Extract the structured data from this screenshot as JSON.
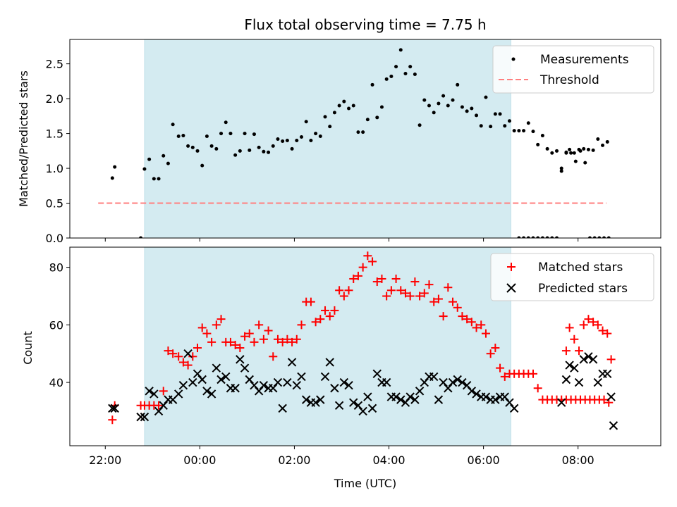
{
  "chart_data": {
    "type": "scatter",
    "title": "Flux total observing time = 7.75 h",
    "xlabel": "Time (UTC)",
    "x_unit": "hours (UTC), values past 24 = next day",
    "xlim": [
      21.25,
      33.75
    ],
    "x_tick_values": [
      22,
      24,
      26,
      28,
      30,
      32
    ],
    "x_tick_labels": [
      "22:00",
      "00:00",
      "02:00",
      "04:00",
      "06:00",
      "08:00"
    ],
    "observing_window": {
      "start": 22.83,
      "end": 30.58,
      "color": "#d4ebf1"
    },
    "panels": [
      {
        "name": "ratio",
        "ylabel": "Matched/Predicted stars",
        "ylim": [
          0,
          2.85
        ],
        "y_ticks": [
          0.0,
          0.5,
          1.0,
          1.5,
          2.0,
          2.5
        ],
        "y_tick_labels": [
          "0.0",
          "0.5",
          "1.0",
          "1.5",
          "2.0",
          "2.5"
        ],
        "legend": {
          "position": "upper right",
          "entries": [
            "Measurements",
            "Threshold"
          ]
        },
        "series": [
          {
            "name": "Measurements",
            "marker": "dot",
            "color": "#000000",
            "x": [
              22.15,
              22.2,
              22.75,
              22.83,
              22.93,
              23.03,
              23.13,
              23.23,
              23.33,
              23.43,
              23.55,
              23.65,
              23.75,
              23.85,
              23.95,
              24.05,
              24.15,
              24.25,
              24.35,
              24.45,
              24.55,
              24.65,
              24.75,
              24.85,
              24.95,
              25.05,
              25.15,
              25.25,
              25.35,
              25.45,
              25.55,
              25.65,
              25.75,
              25.85,
              25.95,
              26.05,
              26.15,
              26.25,
              26.35,
              26.45,
              26.55,
              26.65,
              26.75,
              26.85,
              26.95,
              27.05,
              27.15,
              27.25,
              27.35,
              27.45,
              27.55,
              27.65,
              27.75,
              27.85,
              27.95,
              28.05,
              28.15,
              28.25,
              28.35,
              28.45,
              28.55,
              28.65,
              28.75,
              28.85,
              28.95,
              29.05,
              29.15,
              29.25,
              29.35,
              29.45,
              29.55,
              29.65,
              29.75,
              29.85,
              29.95,
              30.05,
              30.15,
              30.25,
              30.35,
              30.45,
              30.55,
              30.65,
              30.75,
              30.85,
              30.95,
              31.05,
              31.15,
              31.25,
              31.35,
              31.45,
              31.55,
              31.65,
              31.75,
              31.85,
              31.95,
              32.05,
              32.15,
              32.25,
              32.35,
              32.45,
              32.55,
              32.65
            ],
            "y": [
              0.86,
              1.02,
              0.0,
              0.99,
              1.13,
              0.85,
              0.85,
              1.18,
              1.07,
              1.63,
              1.46,
              1.47,
              1.32,
              1.3,
              1.25,
              1.04,
              1.46,
              1.32,
              1.28,
              1.5,
              1.66,
              1.5,
              1.19,
              1.25,
              1.5,
              1.26,
              1.49,
              1.3,
              1.24,
              1.23,
              1.32,
              1.42,
              1.39,
              1.4,
              1.28,
              1.4,
              1.45,
              1.67,
              1.4,
              1.5,
              1.46,
              1.74,
              1.6,
              1.8,
              1.9,
              1.96,
              1.86,
              1.9,
              1.52,
              1.52,
              1.7,
              2.2,
              1.73,
              1.88,
              2.28,
              2.32,
              2.46,
              2.7,
              2.36,
              2.46,
              2.35,
              1.62,
              1.98,
              1.9,
              1.8,
              1.93,
              2.04,
              1.9,
              1.98,
              2.2,
              1.88,
              1.82,
              1.86,
              1.76,
              1.61,
              2.02,
              1.6,
              1.78,
              1.78,
              1.61,
              1.68,
              1.54,
              1.54,
              1.54,
              1.65,
              1.53,
              1.34,
              1.47,
              1.28,
              1.22,
              1.25,
              1.0,
              1.22,
              1.22,
              1.1,
              1.25,
              1.08,
              0.0,
              0.0,
              0.0,
              0.0,
              0.0
            ]
          },
          {
            "name": "Threshold",
            "marker": "dashed-line",
            "color": "#ff7f7f",
            "x": [
              21.85,
              32.6
            ],
            "y": [
              0.5,
              0.5
            ]
          },
          {
            "name": "",
            "marker": "dot",
            "color": "#000000",
            "x": [
              30.75,
              30.85,
              30.95,
              31.05,
              31.15,
              31.25,
              31.35,
              31.45,
              31.55,
              31.65,
              31.75,
              31.82,
              31.92,
              32.02,
              32.12,
              32.22,
              32.32,
              32.42,
              32.52,
              32.62
            ],
            "y": [
              0.0,
              0.0,
              0.0,
              0.0,
              0.0,
              0.0,
              0.0,
              0.0,
              0.0,
              0.96,
              1.23,
              1.27,
              1.22,
              1.27,
              1.28,
              1.27,
              1.26,
              1.42,
              1.33,
              1.38
            ]
          }
        ]
      },
      {
        "name": "counts",
        "ylabel": "Count",
        "ylim": [
          18,
          87
        ],
        "y_ticks": [
          40,
          60,
          80
        ],
        "y_tick_labels": [
          "40",
          "60",
          "80"
        ],
        "legend": {
          "position": "upper right",
          "entries": [
            "Matched stars",
            "Predicted stars"
          ]
        },
        "series": [
          {
            "name": "Matched stars",
            "marker": "plus",
            "color": "#ff0000",
            "x": [
              22.15,
              22.2,
              22.75,
              22.83,
              22.93,
              23.03,
              23.13,
              23.23,
              23.33,
              23.43,
              23.55,
              23.65,
              23.75,
              23.85,
              23.95,
              24.05,
              24.15,
              24.25,
              24.35,
              24.45,
              24.55,
              24.65,
              24.75,
              24.85,
              24.95,
              25.05,
              25.15,
              25.25,
              25.35,
              25.45,
              25.55,
              25.65,
              25.75,
              25.85,
              25.95,
              26.05,
              26.15,
              26.25,
              26.35,
              26.45,
              26.55,
              26.65,
              26.75,
              26.85,
              26.95,
              27.05,
              27.15,
              27.25,
              27.35,
              27.45,
              27.55,
              27.65,
              27.75,
              27.85,
              27.95,
              28.05,
              28.15,
              28.25,
              28.35,
              28.45,
              28.55,
              28.65,
              28.75,
              28.85,
              28.95,
              29.05,
              29.15,
              29.25,
              29.35,
              29.45,
              29.55,
              29.65,
              29.75,
              29.85,
              29.95,
              30.05,
              30.15,
              30.25,
              30.35,
              30.45,
              30.55,
              30.65,
              30.75,
              30.85,
              30.95,
              31.05,
              31.15,
              31.25,
              31.35,
              31.45,
              31.55,
              31.65,
              31.75,
              31.85,
              31.95,
              32.05,
              32.15,
              32.25,
              32.35,
              32.45,
              32.55,
              32.65
            ],
            "y": [
              27,
              32,
              32,
              32,
              32,
              32,
              32,
              37,
              51,
              50,
              49,
              47,
              46,
              49,
              52,
              59,
              57,
              54,
              60,
              62,
              54,
              54,
              53,
              52,
              56,
              57,
              54,
              60,
              55,
              58,
              49,
              55,
              54,
              55,
              54,
              55,
              60,
              68,
              68,
              61,
              62,
              65,
              63,
              65,
              72,
              70,
              72,
              76,
              77,
              80,
              84,
              82,
              75,
              76,
              70,
              72,
              76,
              72,
              71,
              70,
              75,
              70,
              71,
              74,
              68,
              69,
              63,
              73,
              68,
              66,
              63,
              62,
              61,
              59,
              60,
              57,
              50,
              52,
              45,
              42,
              43,
              43,
              43,
              43,
              43,
              43,
              38,
              34,
              34,
              34,
              34,
              34,
              34,
              34,
              34,
              34,
              34,
              34,
              34,
              34,
              34,
              33
            ]
          },
          {
            "name": "Predicted stars",
            "marker": "x",
            "color": "#000000",
            "x": [
              22.15,
              22.2,
              22.75,
              22.83,
              22.93,
              23.03,
              23.13,
              23.23,
              23.33,
              23.43,
              23.55,
              23.65,
              23.75,
              23.85,
              23.95,
              24.05,
              24.15,
              24.25,
              24.35,
              24.45,
              24.55,
              24.65,
              24.75,
              24.85,
              24.95,
              25.05,
              25.15,
              25.25,
              25.35,
              25.45,
              25.55,
              25.65,
              25.75,
              25.85,
              25.95,
              26.05,
              26.15,
              26.25,
              26.35,
              26.45,
              26.55,
              26.65,
              26.75,
              26.85,
              26.95,
              27.05,
              27.15,
              27.25,
              27.35,
              27.45,
              27.55,
              27.65,
              27.75,
              27.85,
              27.95,
              28.05,
              28.15,
              28.25,
              28.35,
              28.45,
              28.55,
              28.65,
              28.75,
              28.85,
              28.95,
              29.05,
              29.15,
              29.25,
              29.35,
              29.45,
              29.55,
              29.65,
              29.75,
              29.85,
              29.95,
              30.05,
              30.15,
              30.25,
              30.35,
              30.45,
              30.55,
              30.65,
              31.65,
              31.75,
              31.82,
              31.92,
              32.02,
              32.12,
              32.22,
              32.32,
              32.42,
              32.52,
              32.62
            ],
            "y": [
              31,
              31,
              28,
              28,
              37,
              36,
              30,
              32,
              34,
              34,
              36,
              39,
              50,
              40,
              43,
              41,
              37,
              36,
              45,
              41,
              42,
              38,
              38,
              48,
              45,
              41,
              39,
              37,
              39,
              38,
              38,
              40,
              31,
              40,
              47,
              39,
              42,
              34,
              33,
              33,
              34,
              42,
              47,
              38,
              32,
              40,
              39,
              33,
              32,
              30,
              35,
              31,
              43,
              40,
              40,
              35,
              35,
              34,
              33,
              35,
              34,
              37,
              40,
              42,
              42,
              34,
              40,
              38,
              40,
              41,
              40,
              39,
              37,
              36,
              35,
              35,
              34,
              34,
              35,
              35,
              33,
              31,
              33,
              41,
              46,
              45,
              40,
              48,
              49,
              48,
              40,
              43,
              43
            ]
          },
          {
            "name": "",
            "marker": "plus",
            "color": "#ff0000",
            "x": [
              31.75,
              31.82,
              31.92,
              32.02,
              32.12,
              32.22,
              32.32,
              32.42,
              32.52,
              32.62,
              32.7
            ],
            "y": [
              51,
              59,
              55,
              51,
              60,
              62,
              61,
              60,
              58,
              57,
              48
            ]
          },
          {
            "name": "",
            "marker": "x",
            "color": "#000000",
            "x": [
              32.7,
              32.75
            ],
            "y": [
              35,
              25
            ]
          }
        ]
      }
    ]
  }
}
